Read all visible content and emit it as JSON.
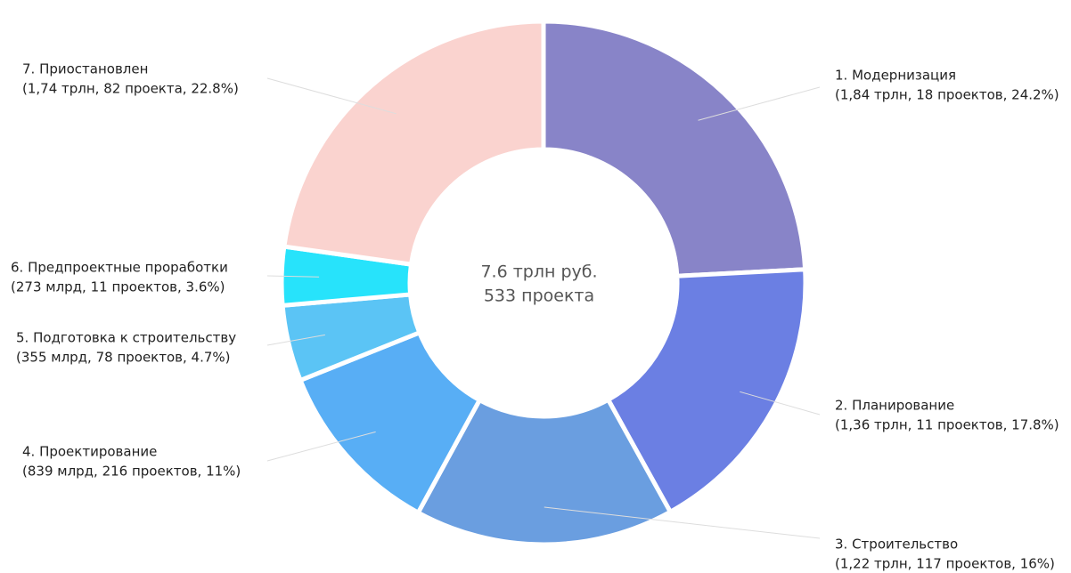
{
  "chart_data": {
    "type": "donut",
    "center_text": [
      "7.6 трлн руб.",
      "533 проекта"
    ],
    "categories": [
      "1. Модернизация",
      "2. Планирование",
      "3. Строительство",
      "4. Проектирование",
      "5. Подготовка к строительству",
      "6. Предпроектные проработки",
      "7. Приостановлен"
    ],
    "values": [
      24.2,
      17.8,
      16,
      11,
      4.7,
      3.6,
      22.8
    ],
    "value_labels": [
      "(1,84 трлн, 18 проектов, 24.2%)",
      "(1,36 трлн, 11 проектов, 17.8%)",
      "(1,22 трлн, 117 проектов, 16%)",
      "(839 млрд, 216 проектов, 11%)",
      "(355 млрд, 78 проектов, 4.7%)",
      "(273 млрд, 11 проектов, 3.6%)",
      "(1,74 трлн, 82 проекта, 22.8%)"
    ],
    "colors": [
      "#8884c8",
      "#6b7fe3",
      "#6a9ee0",
      "#58aef5",
      "#5bc4f5",
      "#27e3fb",
      "#fad3cf"
    ]
  }
}
